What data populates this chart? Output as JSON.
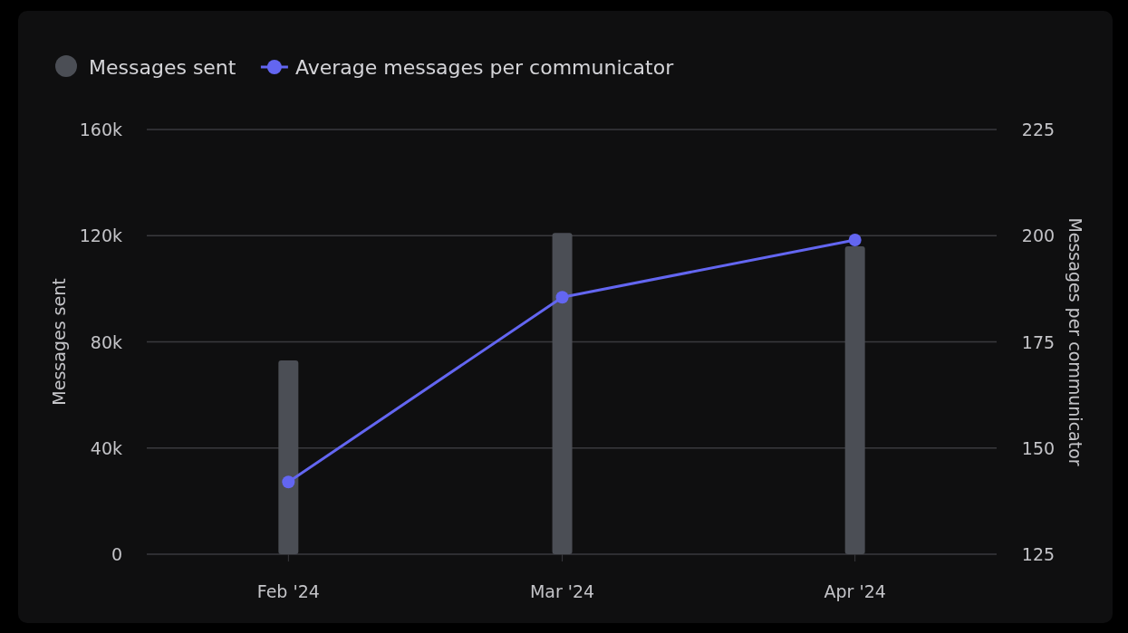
{
  "chart_data": {
    "type": "bar",
    "x": [
      "2024-02-01",
      "2024-03-01",
      "2024-04-01"
    ],
    "series": [
      {
        "name": "Messages sent",
        "color": "#4b4e55",
        "values": [
          73000,
          121000,
          116000
        ]
      },
      {
        "name": "Average messages per communicator",
        "type": "line",
        "axis": "y2",
        "color": "#6366f1",
        "values": [
          142,
          185.5,
          199
        ]
      }
    ],
    "xlim": [
      "2024-01-17",
      "2024-04-16"
    ],
    "xticks": [
      {
        "value": "2024-02-01",
        "label": "Feb '24"
      },
      {
        "value": "2024-03-01",
        "label": "Mar '24"
      },
      {
        "value": "2024-04-01",
        "label": "Apr '24"
      }
    ],
    "ylim": [
      0,
      160000
    ],
    "yticks": [
      {
        "value": 0,
        "label": "0"
      },
      {
        "value": 40000,
        "label": "40k"
      },
      {
        "value": 80000,
        "label": "80k"
      },
      {
        "value": 120000,
        "label": "120k"
      },
      {
        "value": 160000,
        "label": "160k"
      }
    ],
    "y2lim": [
      125,
      225
    ],
    "y2ticks": [
      125,
      150,
      175,
      200,
      225
    ],
    "ylabel": "Messages sent",
    "y2label": "Messages per communicator",
    "grid": "y",
    "legend": "top left",
    "marker": "circle",
    "line_style": "solid"
  }
}
